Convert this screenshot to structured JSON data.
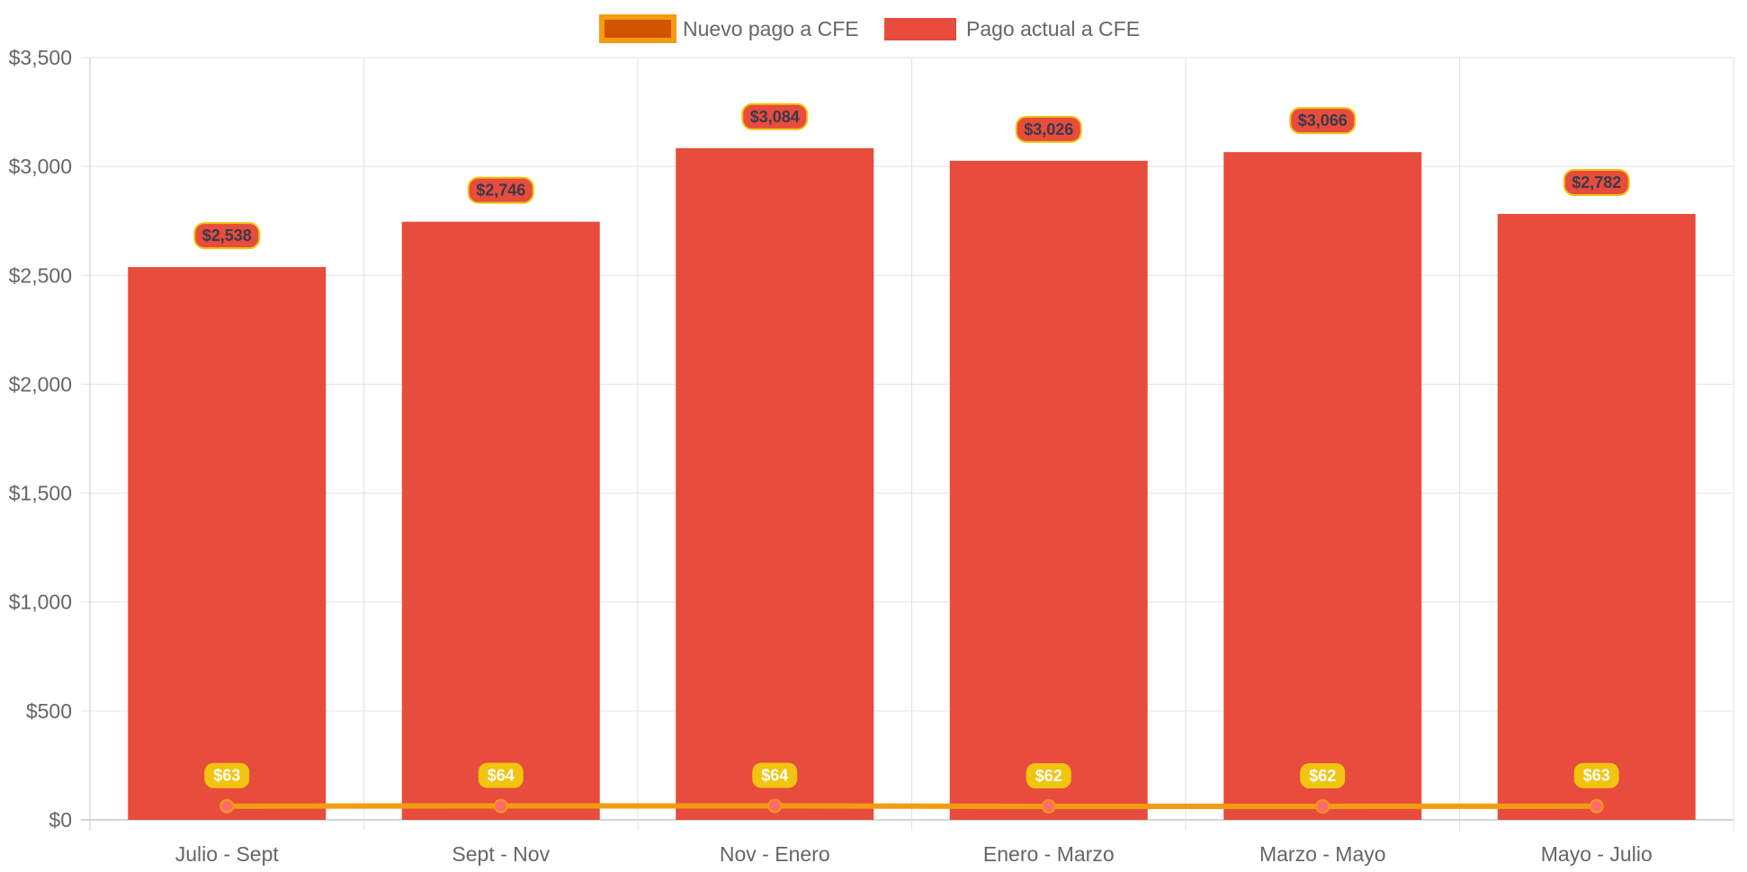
{
  "chart_data": {
    "type": "bar",
    "title": "",
    "xlabel": "",
    "ylabel": "",
    "ylim": [
      0,
      3500
    ],
    "y_ticks": [
      0,
      500,
      1000,
      1500,
      2000,
      2500,
      3000,
      3500
    ],
    "y_tick_labels": [
      "$0",
      "$500",
      "$1,000",
      "$1,500",
      "$2,000",
      "$2,500",
      "$3,000",
      "$3,500"
    ],
    "grid": true,
    "legend_position": "top-center",
    "categories": [
      "Julio - Sept",
      "Sept - Nov",
      "Nov - Enero",
      "Enero - Marzo",
      "Marzo - Mayo",
      "Mayo - Julio"
    ],
    "series": [
      {
        "name": "Nuevo pago a CFE",
        "type": "line",
        "color": "#f39c12",
        "legend_fill": "#d35400",
        "point_color": "#ff6b6b",
        "label_bg": "#f1c40f",
        "values": [
          63,
          64,
          64,
          62,
          62,
          63
        ],
        "labels": [
          "$63",
          "$64",
          "$64",
          "$62",
          "$62",
          "$63"
        ]
      },
      {
        "name": "Pago actual a CFE",
        "type": "bar",
        "color": "#e74c3c",
        "label_bg": "#e74c3c",
        "label_border": "#f1c40f",
        "values": [
          2538,
          2746,
          3084,
          3026,
          3066,
          2782
        ],
        "labels": [
          "$2,538",
          "$2,746",
          "$3,084",
          "$3,026",
          "$3,066",
          "$2,782"
        ]
      }
    ]
  }
}
